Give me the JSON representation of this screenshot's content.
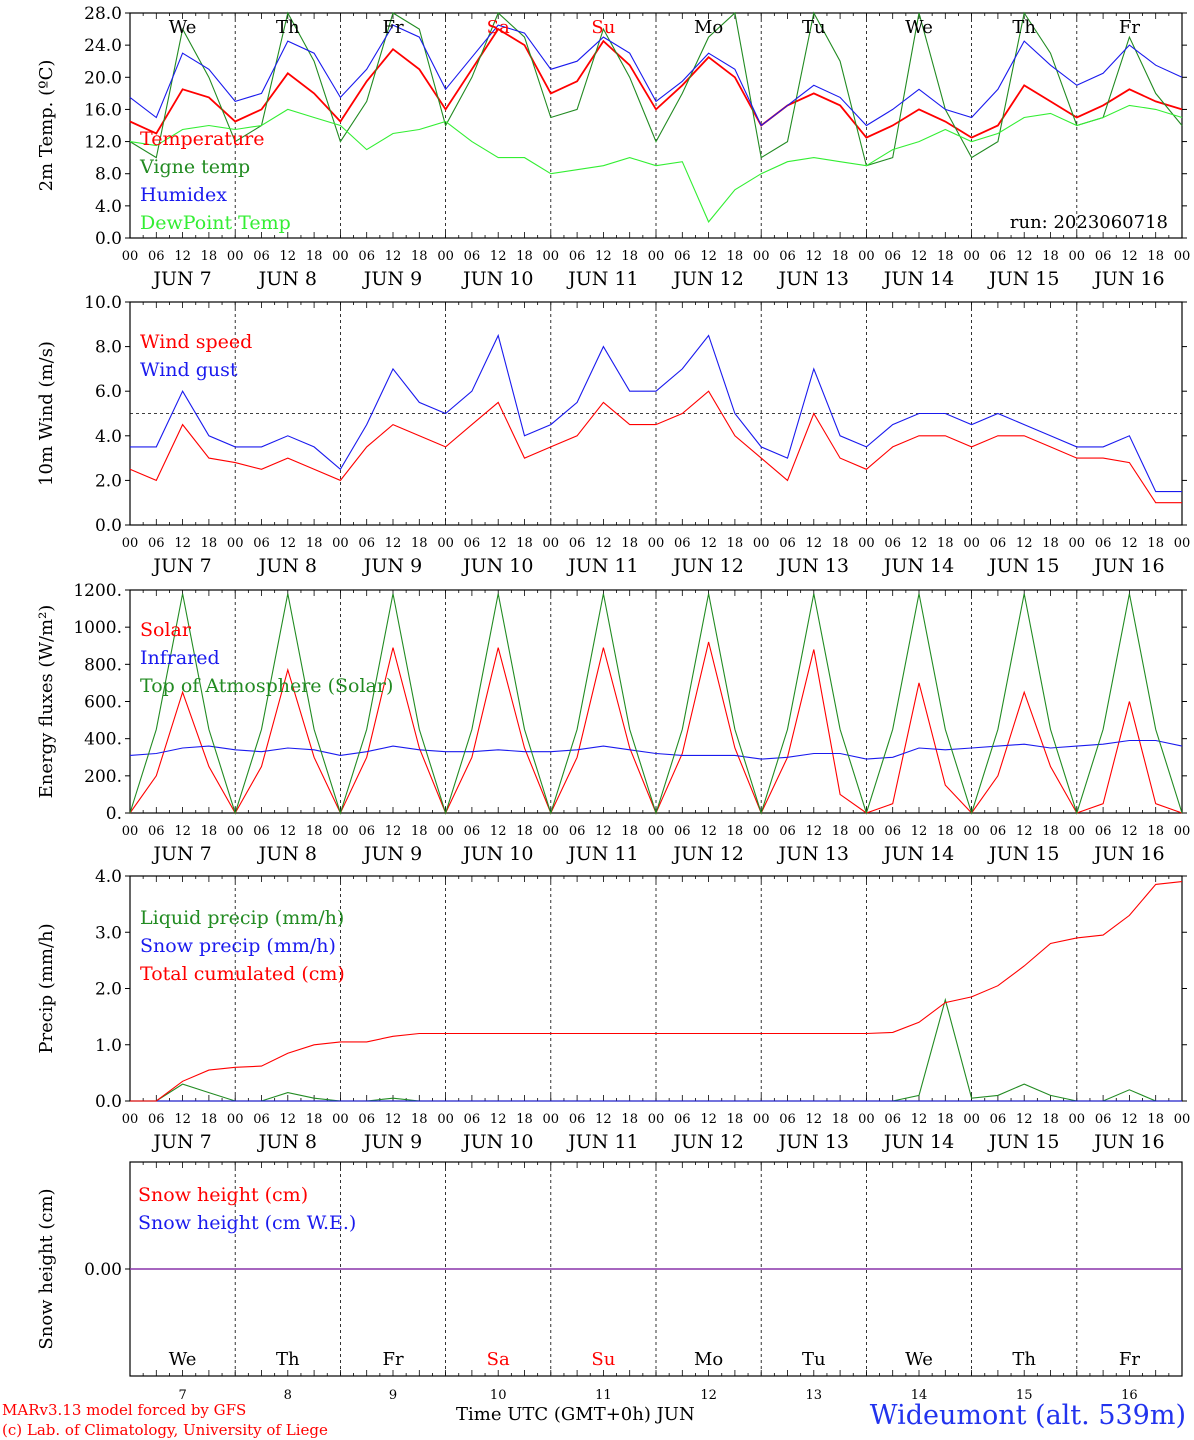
{
  "footer": {
    "credit1": "MARv3.13 model forced by GFS",
    "credit2": "(c) Lab. of Climatology, University of Liege",
    "xaxis_title": "Time UTC (GMT+0h) JUN",
    "station": "Wideumont (alt. 539m)"
  },
  "run_label": "run: 2023060718",
  "hour_ticks": [
    "00",
    "06",
    "12",
    "18"
  ],
  "final_hour": "00",
  "date_labels": [
    "JUN  7",
    "JUN  8",
    "JUN  9",
    "JUN 10",
    "JUN 11",
    "JUN 12",
    "JUN 13",
    "JUN 14",
    "JUN 15",
    "JUN 16"
  ],
  "weekdays": [
    "We",
    "Th",
    "Fr",
    "Sa",
    "Su",
    "Mo",
    "Tu",
    "We",
    "Th",
    "Fr"
  ],
  "weekend_days": [
    "Sa",
    "Su"
  ],
  "bottom_day_numbers": [
    "7",
    "8",
    "9",
    "10",
    "11",
    "12",
    "13",
    "14",
    "15",
    "16"
  ],
  "colors": {
    "red": "#ff0000",
    "darkgreen": "#228b22",
    "blue": "#1a1aee",
    "lightgreen": "#33ee33",
    "purple": "#8833aa"
  },
  "chart_data": [
    {
      "type": "line",
      "ylabel": "2m Temp. (ºC)",
      "ylim": [
        0,
        28
      ],
      "yticks": [
        "0.0",
        "4.0",
        "8.0",
        "12.0",
        "16.0",
        "20.0",
        "24.0",
        "28.0"
      ],
      "x": [
        "Jun 7 00",
        "Jun 7 06",
        "Jun 7 12",
        "Jun 7 18",
        "Jun 8 00",
        "Jun 8 06",
        "Jun 8 12",
        "Jun 8 18",
        "Jun 9 00",
        "Jun 9 06",
        "Jun 9 12",
        "Jun 9 18",
        "Jun 10 00",
        "Jun 10 06",
        "Jun 10 12",
        "Jun 10 18",
        "Jun 11 00",
        "Jun 11 06",
        "Jun 11 12",
        "Jun 11 18",
        "Jun 12 00",
        "Jun 12 06",
        "Jun 12 12",
        "Jun 12 18",
        "Jun 13 00",
        "Jun 13 06",
        "Jun 13 12",
        "Jun 13 18",
        "Jun 14 00",
        "Jun 14 06",
        "Jun 14 12",
        "Jun 14 18",
        "Jun 15 00",
        "Jun 15 06",
        "Jun 15 12",
        "Jun 15 18",
        "Jun 16 00",
        "Jun 16 06",
        "Jun 16 12",
        "Jun 16 18",
        "Jun 17 00"
      ],
      "series": [
        {
          "name": "Temperature",
          "color": "red",
          "values": [
            14.5,
            13.0,
            18.5,
            17.5,
            14.5,
            16.0,
            20.5,
            18.0,
            14.5,
            19.5,
            23.5,
            21.0,
            16.0,
            21.0,
            26.0,
            24.0,
            18.0,
            19.5,
            24.5,
            21.5,
            16.0,
            19.0,
            22.5,
            20.0,
            14.0,
            16.5,
            18.0,
            16.5,
            12.5,
            14.0,
            16.0,
            14.5,
            12.5,
            14.0,
            19.0,
            17.0,
            15.0,
            16.5,
            18.5,
            17.0,
            16.0
          ]
        },
        {
          "name": "Vigne temp",
          "color": "darkgreen",
          "values": [
            12.0,
            10.0,
            26.0,
            20.0,
            12.0,
            14.0,
            28.0,
            22.0,
            12.0,
            17.0,
            28.0,
            26.0,
            14.0,
            20.0,
            28.0,
            25.0,
            15.0,
            16.0,
            26.0,
            20.0,
            12.0,
            18.0,
            25.0,
            28.0,
            10.0,
            12.0,
            28.0,
            22.0,
            9.0,
            10.0,
            28.0,
            16.0,
            10.0,
            12.0,
            28.0,
            23.0,
            14.0,
            15.0,
            25.0,
            18.0,
            14.0
          ]
        },
        {
          "name": "Humidex",
          "color": "blue",
          "values": [
            17.5,
            15.0,
            23.0,
            21.0,
            17.0,
            18.0,
            24.5,
            23.0,
            17.5,
            21.0,
            26.5,
            25.0,
            18.5,
            22.5,
            26.5,
            25.5,
            21.0,
            22.0,
            25.0,
            23.0,
            17.0,
            19.5,
            23.0,
            21.0,
            14.0,
            16.5,
            19.0,
            17.5,
            14.0,
            16.0,
            18.5,
            16.0,
            15.0,
            18.5,
            24.5,
            21.5,
            19.0,
            20.5,
            24.0,
            21.5,
            20.0
          ]
        },
        {
          "name": "DewPoint Temp",
          "color": "lightgreen",
          "values": [
            12.0,
            11.5,
            13.5,
            14.0,
            13.5,
            14.0,
            16.0,
            15.0,
            14.0,
            11.0,
            13.0,
            13.5,
            14.5,
            12.0,
            10.0,
            10.0,
            8.0,
            8.5,
            9.0,
            10.0,
            9.0,
            9.5,
            2.0,
            6.0,
            8.0,
            9.5,
            10.0,
            9.5,
            9.0,
            11.0,
            12.0,
            13.5,
            12.0,
            13.0,
            15.0,
            15.5,
            14.0,
            15.0,
            16.5,
            16.0,
            15.0
          ]
        }
      ],
      "legend_position": "left"
    },
    {
      "type": "line",
      "ylabel": "10m Wind (m/s)",
      "ylim": [
        0,
        10
      ],
      "yticks": [
        "0.0",
        "2.0",
        "4.0",
        "6.0",
        "8.0",
        "10.0"
      ],
      "reference_line": 5,
      "x": [
        "Jun 7 00",
        "Jun 7 06",
        "Jun 7 12",
        "Jun 7 18",
        "Jun 8 00",
        "Jun 8 06",
        "Jun 8 12",
        "Jun 8 18",
        "Jun 9 00",
        "Jun 9 06",
        "Jun 9 12",
        "Jun 9 18",
        "Jun 10 00",
        "Jun 10 06",
        "Jun 10 12",
        "Jun 10 18",
        "Jun 11 00",
        "Jun 11 06",
        "Jun 11 12",
        "Jun 11 18",
        "Jun 12 00",
        "Jun 12 06",
        "Jun 12 12",
        "Jun 12 18",
        "Jun 13 00",
        "Jun 13 06",
        "Jun 13 12",
        "Jun 13 18",
        "Jun 14 00",
        "Jun 14 06",
        "Jun 14 12",
        "Jun 14 18",
        "Jun 15 00",
        "Jun 15 06",
        "Jun 15 12",
        "Jun 15 18",
        "Jun 16 00",
        "Jun 16 06",
        "Jun 16 12",
        "Jun 16 18",
        "Jun 17 00"
      ],
      "series": [
        {
          "name": "Wind speed",
          "color": "red",
          "values": [
            2.5,
            2.0,
            4.5,
            3.0,
            2.8,
            2.5,
            3.0,
            2.5,
            2.0,
            3.5,
            4.5,
            4.0,
            3.5,
            4.5,
            5.5,
            3.0,
            3.5,
            4.0,
            5.5,
            4.5,
            4.5,
            5.0,
            6.0,
            4.0,
            3.0,
            2.0,
            5.0,
            3.0,
            2.5,
            3.5,
            4.0,
            4.0,
            3.5,
            4.0,
            4.0,
            3.5,
            3.0,
            3.0,
            2.8,
            1.0,
            1.0
          ]
        },
        {
          "name": "Wind gust",
          "color": "blue",
          "values": [
            3.5,
            3.5,
            6.0,
            4.0,
            3.5,
            3.5,
            4.0,
            3.5,
            2.5,
            4.5,
            7.0,
            5.5,
            5.0,
            6.0,
            8.5,
            4.0,
            4.5,
            5.5,
            8.0,
            6.0,
            6.0,
            7.0,
            8.5,
            5.0,
            3.5,
            3.0,
            7.0,
            4.0,
            3.5,
            4.5,
            5.0,
            5.0,
            4.5,
            5.0,
            4.5,
            4.0,
            3.5,
            3.5,
            4.0,
            1.5,
            1.5
          ]
        }
      ],
      "legend_position": "left"
    },
    {
      "type": "line",
      "ylabel": "Energy fluxes (W/m²)",
      "ylim": [
        0,
        1200
      ],
      "yticks": [
        "0.",
        "200.",
        "400.",
        "600.",
        "800.",
        "1000.",
        "1200."
      ],
      "x": [
        "Jun 7 00",
        "Jun 7 06",
        "Jun 7 12",
        "Jun 7 18",
        "Jun 8 00",
        "Jun 8 06",
        "Jun 8 12",
        "Jun 8 18",
        "Jun 9 00",
        "Jun 9 06",
        "Jun 9 12",
        "Jun 9 18",
        "Jun 10 00",
        "Jun 10 06",
        "Jun 10 12",
        "Jun 10 18",
        "Jun 11 00",
        "Jun 11 06",
        "Jun 11 12",
        "Jun 11 18",
        "Jun 12 00",
        "Jun 12 06",
        "Jun 12 12",
        "Jun 12 18",
        "Jun 13 00",
        "Jun 13 06",
        "Jun 13 12",
        "Jun 13 18",
        "Jun 14 00",
        "Jun 14 06",
        "Jun 14 12",
        "Jun 14 18",
        "Jun 15 00",
        "Jun 15 06",
        "Jun 15 12",
        "Jun 15 18",
        "Jun 16 00",
        "Jun 16 06",
        "Jun 16 12",
        "Jun 16 18",
        "Jun 17 00"
      ],
      "series": [
        {
          "name": "Solar",
          "color": "red",
          "values": [
            0,
            200,
            650,
            250,
            0,
            250,
            770,
            300,
            0,
            300,
            890,
            350,
            0,
            300,
            890,
            350,
            0,
            300,
            890,
            350,
            0,
            320,
            920,
            350,
            0,
            300,
            880,
            100,
            0,
            50,
            700,
            150,
            0,
            200,
            650,
            250,
            0,
            50,
            600,
            50,
            0
          ]
        },
        {
          "name": "Infrared",
          "color": "blue",
          "values": [
            310,
            320,
            350,
            360,
            340,
            330,
            350,
            340,
            310,
            330,
            360,
            340,
            330,
            330,
            340,
            330,
            330,
            340,
            360,
            340,
            320,
            310,
            310,
            310,
            290,
            300,
            320,
            320,
            290,
            300,
            350,
            340,
            350,
            360,
            370,
            350,
            360,
            370,
            390,
            390,
            360
          ]
        },
        {
          "name": "Top of Atmosphere (Solar)",
          "color": "darkgreen",
          "values": [
            0,
            450,
            1180,
            450,
            0,
            450,
            1180,
            450,
            0,
            450,
            1180,
            450,
            0,
            450,
            1180,
            450,
            0,
            450,
            1180,
            450,
            0,
            450,
            1180,
            450,
            0,
            450,
            1180,
            450,
            0,
            450,
            1180,
            450,
            0,
            450,
            1180,
            450,
            0,
            450,
            1180,
            450,
            0
          ]
        }
      ],
      "legend_position": "left"
    },
    {
      "type": "line",
      "ylabel": "Precip (mm/h)",
      "ylim": [
        0,
        4
      ],
      "yticks": [
        "0.0",
        "1.0",
        "2.0",
        "3.0",
        "4.0"
      ],
      "x": [
        "Jun 7 00",
        "Jun 7 06",
        "Jun 7 12",
        "Jun 7 18",
        "Jun 8 00",
        "Jun 8 06",
        "Jun 8 12",
        "Jun 8 18",
        "Jun 9 00",
        "Jun 9 06",
        "Jun 9 12",
        "Jun 9 18",
        "Jun 10 00",
        "Jun 10 06",
        "Jun 10 12",
        "Jun 10 18",
        "Jun 11 00",
        "Jun 11 06",
        "Jun 11 12",
        "Jun 11 18",
        "Jun 12 00",
        "Jun 12 06",
        "Jun 12 12",
        "Jun 12 18",
        "Jun 13 00",
        "Jun 13 06",
        "Jun 13 12",
        "Jun 13 18",
        "Jun 14 00",
        "Jun 14 06",
        "Jun 14 12",
        "Jun 14 18",
        "Jun 15 00",
        "Jun 15 06",
        "Jun 15 12",
        "Jun 15 18",
        "Jun 16 00",
        "Jun 16 06",
        "Jun 16 12",
        "Jun 16 18",
        "Jun 17 00"
      ],
      "series": [
        {
          "name": "Liquid precip (mm/h)",
          "color": "darkgreen",
          "values": [
            0,
            0,
            0.3,
            0.15,
            0,
            0,
            0.15,
            0.05,
            0,
            0,
            0.05,
            0,
            0,
            0,
            0,
            0,
            0,
            0,
            0,
            0,
            0,
            0,
            0,
            0,
            0,
            0,
            0,
            0,
            0,
            0,
            0.1,
            1.8,
            0.05,
            0.1,
            0.3,
            0.1,
            0,
            0,
            0.2,
            0,
            0
          ]
        },
        {
          "name": "Snow precip (mm/h)",
          "color": "blue",
          "values": [
            0,
            0,
            0,
            0,
            0,
            0,
            0,
            0,
            0,
            0,
            0,
            0,
            0,
            0,
            0,
            0,
            0,
            0,
            0,
            0,
            0,
            0,
            0,
            0,
            0,
            0,
            0,
            0,
            0,
            0,
            0,
            0,
            0,
            0,
            0,
            0,
            0,
            0,
            0,
            0,
            0
          ]
        },
        {
          "name": "Total cumulated (cm)",
          "color": "red",
          "values": [
            0,
            0,
            0.35,
            0.55,
            0.6,
            0.62,
            0.85,
            1.0,
            1.05,
            1.05,
            1.15,
            1.2,
            1.2,
            1.2,
            1.2,
            1.2,
            1.2,
            1.2,
            1.2,
            1.2,
            1.2,
            1.2,
            1.2,
            1.2,
            1.2,
            1.2,
            1.2,
            1.2,
            1.2,
            1.22,
            1.4,
            1.75,
            1.85,
            2.05,
            2.4,
            2.8,
            2.9,
            2.95,
            3.3,
            3.85,
            3.9
          ]
        }
      ],
      "legend_position": "left"
    },
    {
      "type": "line",
      "ylabel": "Snow height (cm)",
      "yticks": [
        "0.00"
      ],
      "series": [
        {
          "name": "Snow height (cm)",
          "color": "red",
          "values": [
            0,
            0
          ]
        },
        {
          "name": "Snow height (cm W.E.)",
          "color": "blue",
          "values": [
            0,
            0
          ]
        }
      ],
      "legend_position": "left"
    }
  ]
}
